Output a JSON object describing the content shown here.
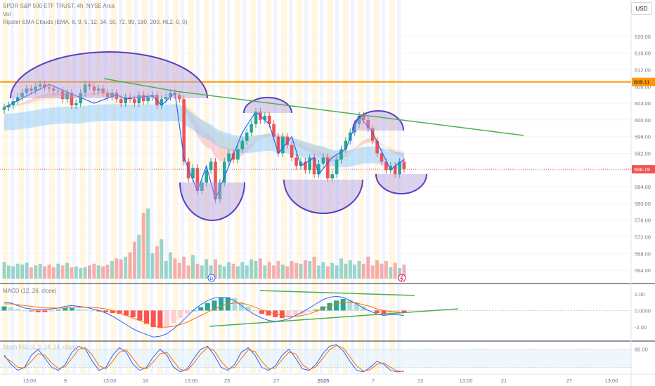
{
  "header": {
    "symbol": "SPDR S&P 500 ETF TRUST, 4h, NYSE Arca",
    "vol": "Vol",
    "indicator": "Ripster EMA Clouds (EMA, 8, 9, 5, 12, 34, 50, 72, 89, 180, 200, HL2, 0, 0)",
    "currency": "USD"
  },
  "macd": {
    "label": "MACD (12, 26, close)"
  },
  "stoch": {
    "label": "Stoch RSI (3, 3, 14, 14, close)"
  },
  "colors": {
    "up": "#26a69a",
    "down": "#ef5350",
    "resistance": "#ff9800",
    "trend": "#4caf50",
    "pattern": "#5b3fc4",
    "zigzag": "#2962ff"
  },
  "price_badges": {
    "resistance": "609.11",
    "last": "588.19"
  },
  "event_markers": [
    "D"
  ],
  "chart_data": [
    {
      "type": "candlestick",
      "pane": "price",
      "ylim": [
        562,
        622
      ],
      "y_ticks": [
        "620.00",
        "616.00",
        "612.00",
        "608.00",
        "604.00",
        "600.00",
        "596.00",
        "592.00",
        "588.00",
        "584.00",
        "580.00",
        "576.00",
        "572.00",
        "568.00",
        "564.00"
      ],
      "x_ticks": [
        "13:00",
        "9",
        "13:00",
        "16",
        "13:00",
        "23",
        "27",
        "2025",
        "7",
        "13",
        "13:00",
        "21",
        "27",
        "13:00"
      ],
      "resistance": 609.11,
      "last_price": 588.19,
      "close": [
        603.0,
        603.5,
        604.5,
        605.5,
        606.5,
        607.5,
        607.0,
        608.0,
        608.5,
        607.8,
        607.5,
        607.0,
        607.0,
        605.0,
        606.5,
        603.5,
        604.0,
        606.5,
        608.5,
        608.0,
        607.0,
        607.5,
        606.5,
        605.5,
        606.5,
        605.0,
        604.0,
        605.5,
        605.0,
        604.0,
        606.0,
        604.5,
        605.5,
        606.0,
        603.5,
        605.0,
        605.5,
        606.5,
        606.0,
        605.0,
        590.0,
        586.0,
        588.5,
        583.0,
        585.0,
        588.0,
        590.0,
        581.0,
        585.0,
        590.0,
        592.0,
        590.5,
        593.0,
        595.0,
        597.0,
        599.0,
        602.0,
        600.0,
        601.0,
        599.0,
        596.0,
        592.0,
        596.0,
        594.0,
        591.0,
        589.0,
        590.0,
        588.0,
        591.0,
        587.0,
        589.5,
        591.0,
        586.0,
        587.0,
        590.5,
        593.0,
        595.0,
        597.0,
        599.0,
        601.0,
        600.0,
        598.0,
        595.0,
        592.0,
        590.0,
        588.0,
        589.0,
        587.0,
        590.0,
        588.19
      ],
      "volume": [
        38,
        30,
        28,
        34,
        32,
        36,
        26,
        30,
        34,
        28,
        32,
        26,
        34,
        30,
        36,
        26,
        28,
        24,
        26,
        30,
        34,
        30,
        28,
        32,
        40,
        46,
        44,
        50,
        60,
        84,
        100,
        150,
        160,
        58,
        74,
        90,
        40,
        60,
        46,
        36,
        50,
        30,
        54,
        34,
        30,
        44,
        30,
        44,
        32,
        28,
        38,
        34,
        28,
        38,
        30,
        44,
        40,
        46,
        30,
        38,
        30,
        40,
        32,
        28,
        40,
        36,
        34,
        42,
        40,
        50,
        30,
        38,
        28,
        36,
        30,
        46,
        34,
        42,
        32,
        40,
        34,
        50,
        30,
        42,
        34,
        40,
        26,
        36,
        24,
        32
      ]
    },
    {
      "type": "histogram",
      "pane": "MACD",
      "ylim": [
        -3.6,
        3.0
      ],
      "y_ticks": [
        "2.00",
        "0.0000",
        "-2.00"
      ],
      "values": [
        0.5,
        0.4,
        0.2,
        0.0,
        -0.1,
        -0.2,
        -0.2,
        -0.1,
        0.1,
        0.3,
        0.3,
        0.2,
        0.1,
        0.0,
        -0.1,
        -0.2,
        -0.3,
        -0.4,
        -0.6,
        -0.8,
        -1.2,
        -1.6,
        -2.0,
        -2.1,
        -1.9,
        -1.5,
        -0.9,
        -0.4,
        0.0,
        0.4,
        0.9,
        1.2,
        1.5,
        1.6,
        1.5,
        1.0,
        0.5,
        0.0,
        -0.4,
        -0.6,
        -0.8,
        -0.9,
        -0.8,
        -0.6,
        -0.4,
        -0.2,
        0.1,
        0.5,
        0.9,
        1.2,
        1.4,
        1.3,
        1.0,
        0.5,
        0.0,
        -0.3,
        -0.5,
        -0.4,
        -0.3,
        -0.3
      ],
      "macd_line": [
        1.0,
        0.9,
        0.6,
        0.3,
        0.2,
        0.1,
        0.1,
        0.2,
        0.3,
        0.5,
        0.6,
        0.5,
        0.4,
        0.2,
        0.0,
        -0.3,
        -0.7,
        -1.2,
        -1.7,
        -2.2,
        -2.6,
        -2.9,
        -3.2,
        -3.1,
        -2.8,
        -2.2,
        -1.5,
        -0.7,
        0.1,
        0.7,
        1.2,
        1.5,
        1.6,
        1.5,
        1.2,
        0.6,
        0.0,
        -0.5,
        -0.9,
        -1.2,
        -1.3,
        -1.2,
        -1.0,
        -0.6,
        -0.2,
        0.3,
        0.8,
        1.3,
        1.6,
        1.7,
        1.6,
        1.2,
        0.8,
        0.3,
        -0.1,
        -0.4,
        -0.6,
        -0.5,
        -0.5,
        -0.6
      ],
      "signal_line": [
        0.8,
        0.8,
        0.7,
        0.6,
        0.5,
        0.4,
        0.3,
        0.3,
        0.3,
        0.3,
        0.4,
        0.4,
        0.4,
        0.4,
        0.3,
        0.2,
        0.0,
        -0.3,
        -0.6,
        -0.9,
        -1.2,
        -1.5,
        -1.8,
        -2.0,
        -2.0,
        -1.9,
        -1.7,
        -1.4,
        -1.0,
        -0.6,
        -0.2,
        0.2,
        0.5,
        0.8,
        0.9,
        0.9,
        0.7,
        0.4,
        0.1,
        -0.2,
        -0.4,
        -0.6,
        -0.7,
        -0.7,
        -0.6,
        -0.4,
        -0.1,
        0.2,
        0.5,
        0.8,
        1.0,
        1.0,
        0.9,
        0.7,
        0.5,
        0.2,
        0.0,
        -0.1,
        -0.2,
        -0.3
      ]
    },
    {
      "type": "line",
      "pane": "Stoch RSI",
      "ylim": [
        0,
        100
      ],
      "y_ticks": [
        "80.00"
      ],
      "k": [
        60,
        30,
        10,
        20,
        60,
        80,
        50,
        20,
        10,
        30,
        70,
        90,
        80,
        40,
        10,
        20,
        60,
        85,
        70,
        30,
        10,
        20,
        55,
        80,
        60,
        20,
        5,
        15,
        50,
        80,
        90,
        60,
        20,
        10,
        30,
        70,
        85,
        60,
        20,
        10,
        25,
        60,
        80,
        50,
        15,
        10,
        30,
        65,
        90,
        95,
        75,
        40,
        10,
        5,
        20,
        40,
        30,
        10,
        5,
        8
      ],
      "d": [
        55,
        40,
        20,
        18,
        40,
        65,
        60,
        35,
        15,
        22,
        50,
        80,
        85,
        60,
        25,
        15,
        40,
        70,
        78,
        50,
        20,
        15,
        38,
        65,
        70,
        40,
        12,
        10,
        35,
        65,
        85,
        75,
        40,
        15,
        20,
        50,
        78,
        72,
        40,
        15,
        18,
        45,
        70,
        65,
        30,
        12,
        22,
        50,
        78,
        92,
        85,
        55,
        25,
        8,
        12,
        30,
        35,
        20,
        8,
        6
      ]
    }
  ]
}
